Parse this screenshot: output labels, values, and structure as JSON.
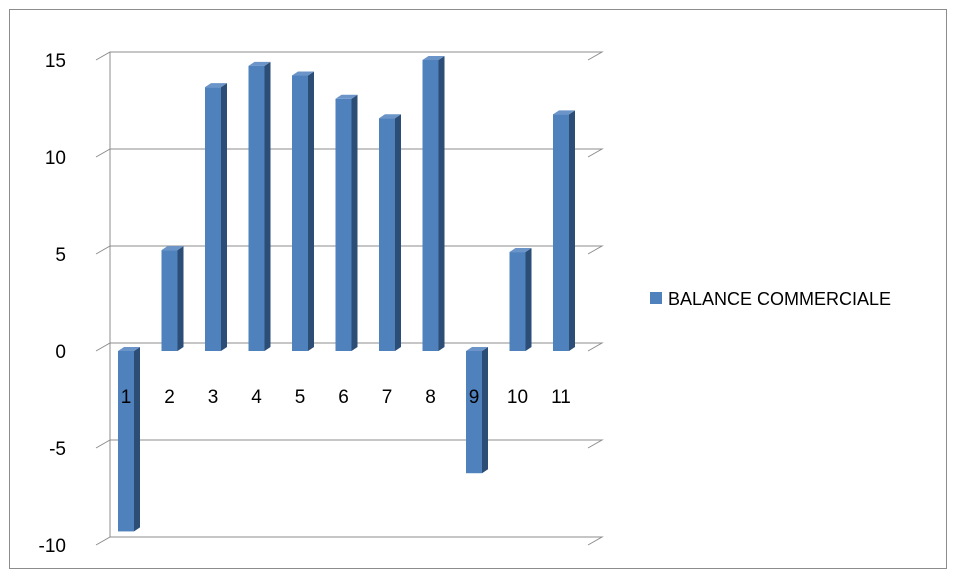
{
  "chart_data": {
    "type": "bar",
    "categories": [
      "1",
      "2",
      "3",
      "4",
      "5",
      "6",
      "7",
      "8",
      "9",
      "10",
      "11"
    ],
    "series": [
      {
        "name": "BALANCE COMMERCIALE",
        "color": "#4f81bd",
        "values": [
          -9.3,
          5.2,
          13.6,
          14.7,
          14.2,
          13.0,
          12.0,
          15.0,
          -6.3,
          5.1,
          12.2
        ]
      }
    ],
    "ylim": [
      -10,
      15
    ],
    "yticks": [
      "-10",
      "-5",
      "0",
      "5",
      "10",
      "15"
    ],
    "grid": true,
    "legend_position": "right"
  }
}
